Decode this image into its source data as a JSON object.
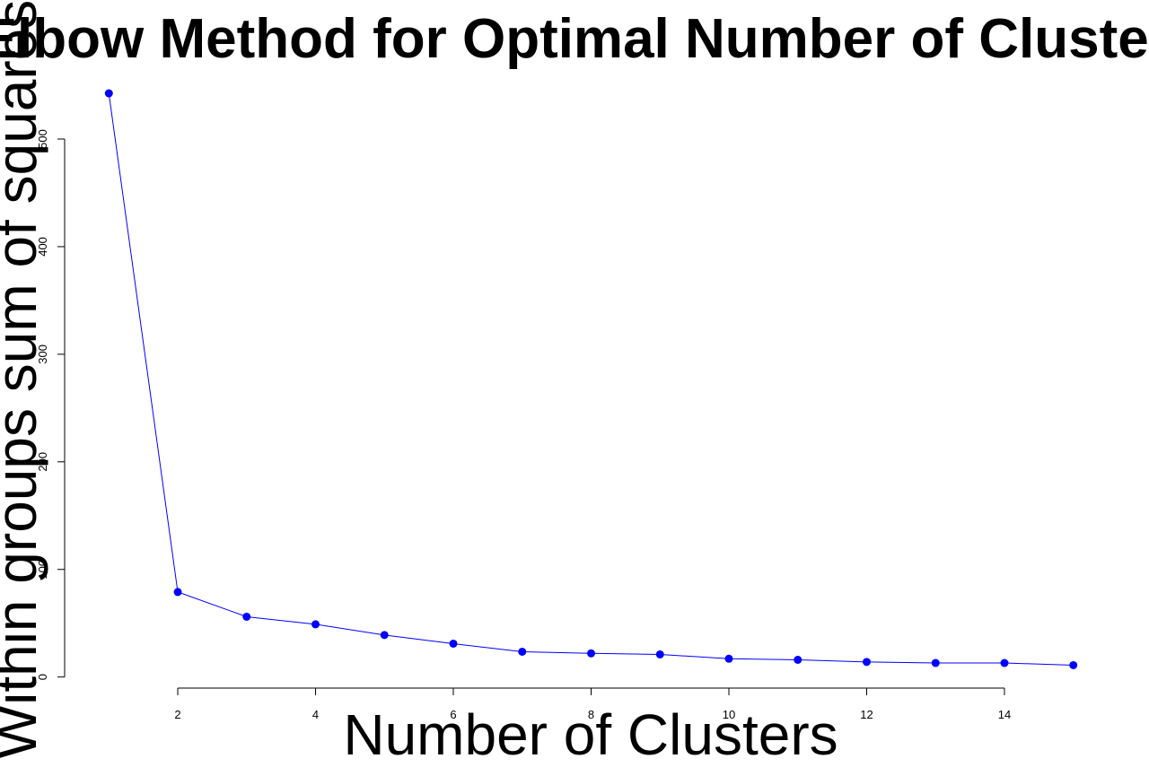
{
  "chart_data": {
    "type": "line",
    "title": "Elbow Method for Optimal Number of Clusters",
    "x_label": "Number of Clusters",
    "y_label": "Within groups sum of squares",
    "x": [
      1,
      2,
      3,
      4,
      5,
      6,
      7,
      8,
      9,
      10,
      11,
      12,
      13,
      14,
      15
    ],
    "series": [
      {
        "color": "#0000ff",
        "values": [
          542.5,
          79,
          56,
          49,
          39,
          31,
          23.5,
          22,
          21,
          17,
          16,
          14,
          13,
          13,
          11
        ]
      }
    ],
    "xlim": [
      0.44,
      15.56
    ],
    "ylim": [
      -10.3,
      563.8
    ],
    "xticks": [
      2,
      4,
      6,
      8,
      10,
      12,
      14
    ],
    "yticks": [
      0,
      100,
      200,
      300,
      400,
      500
    ]
  }
}
